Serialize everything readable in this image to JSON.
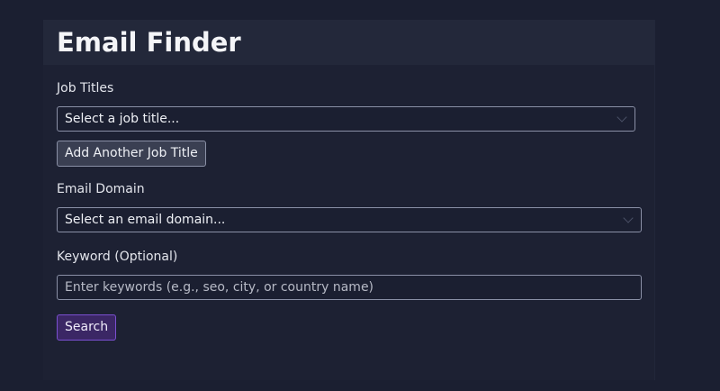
{
  "page": {
    "title": "Email Finder"
  },
  "form": {
    "job_titles": {
      "label": "Job Titles",
      "placeholder": "Select a job title...",
      "add_button": "Add Another Job Title"
    },
    "email_domain": {
      "label": "Email Domain",
      "placeholder": "Select an email domain..."
    },
    "keyword": {
      "label": "Keyword (Optional)",
      "placeholder": "Enter keywords (e.g., seo, city, or country name)"
    },
    "search_button": "Search"
  },
  "colors": {
    "background": "#1b1f31",
    "header": "#23283a",
    "accent": "#7a4fd0"
  }
}
